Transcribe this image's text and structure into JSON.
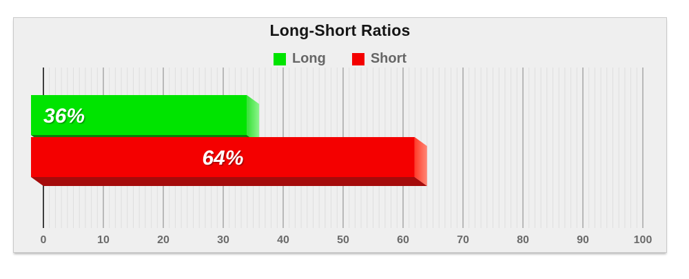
{
  "chart_data": {
    "type": "bar",
    "orientation": "horizontal",
    "effect": "3d",
    "title": "Long-Short Ratios",
    "legend_position": "top",
    "grid": true,
    "xlim": [
      0,
      100
    ],
    "xticks": [
      0,
      10,
      20,
      30,
      40,
      50,
      60,
      70,
      80,
      90,
      100
    ],
    "minor_tick_interval": 1,
    "categories": [
      "Long",
      "Short"
    ],
    "series": [
      {
        "name": "Long",
        "value": 36,
        "label": "36%",
        "label_align": "left",
        "color": "#00e400",
        "side_color": "#35e035",
        "side_color_light": "#8df58d",
        "bottom_color": "#0d7c0d"
      },
      {
        "name": "Short",
        "value": 64,
        "label": "64%",
        "label_align": "center",
        "color": "#f40000",
        "side_color": "#ff3b28",
        "side_color_light": "#ff8877",
        "bottom_color": "#a50b0b"
      }
    ],
    "colors": {
      "title_text": "#151515",
      "legend_text": "#666666",
      "axis_text": "#6a6a6a",
      "zero_axis_line": "#3d3d3d",
      "major_gridline": "#a6a6a6",
      "minor_gridline": "#dedede",
      "plot_background": "#efefef"
    }
  }
}
